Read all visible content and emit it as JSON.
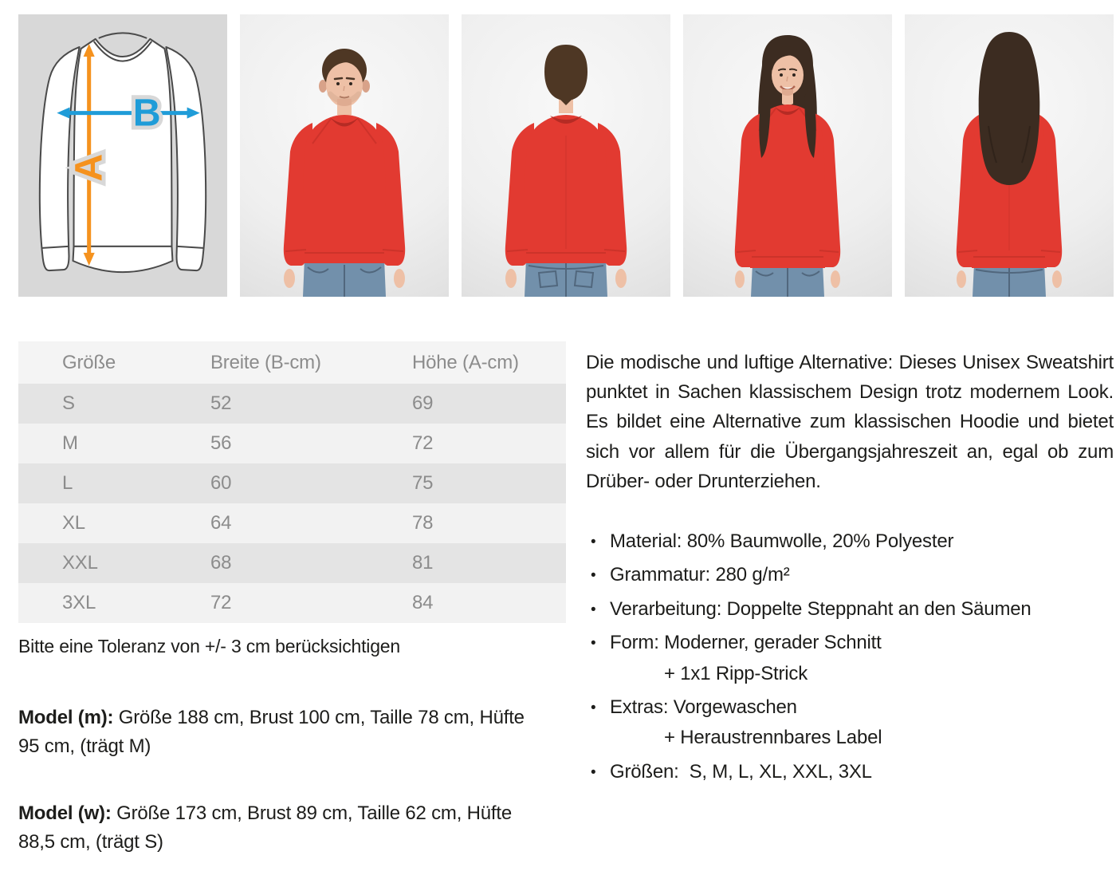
{
  "colors": {
    "red": "#e23a31",
    "red-dark": "#b52b24",
    "skin": "#eec0a6",
    "skin-sh": "#d8a289",
    "hair-m": "#4e3724",
    "hair-w": "#3c2c21",
    "jeans": "#7290ab",
    "jeans-dark": "#51677d",
    "line": "#4a4a4a",
    "arrow-orange": "#f5921e",
    "arrow-blue": "#1f9cd8",
    "diagram-bg": "#d8d8d8",
    "text": "#1d1d1b",
    "muted": "#8c8c8c",
    "row-dark": "#e4e4e4",
    "row-light": "#f2f2f2",
    "header-bg": "#f4f4f4"
  },
  "gallery": {
    "diagram": {
      "label_a": "A",
      "label_b": "B"
    },
    "photos": [
      "man-front",
      "man-back",
      "woman-front",
      "woman-back"
    ]
  },
  "size_table": {
    "headers": [
      "Größe",
      "Breite (B-cm)",
      "Höhe (A-cm)"
    ],
    "rows": [
      [
        "S",
        "52",
        "69"
      ],
      [
        "M",
        "56",
        "72"
      ],
      [
        "L",
        "60",
        "75"
      ],
      [
        "XL",
        "64",
        "78"
      ],
      [
        "XXL",
        "68",
        "81"
      ],
      [
        "3XL",
        "72",
        "84"
      ]
    ],
    "note": "Bitte eine Toleranz von +/- 3 cm berücksichtigen"
  },
  "models": [
    {
      "label": "Model (m):",
      "text": "Größe 188 cm, Brust 100 cm, Taille 78 cm, Hüfte 95 cm, (trägt M)"
    },
    {
      "label": "Model (w):",
      "text": "Größe 173 cm, Brust 89 cm, Taille 62 cm, Hüfte 88,5 cm, (trägt S)"
    }
  ],
  "description": {
    "paragraph": "Die modische und luftige Alternative: Dieses Unisex Sweatshirt punktet in Sachen klassischem Design trotz modernem Look. Es bildet eine Alternative zum klassischen Hoodie und bietet sich vor allem für die Übergangsjahreszeit an, egal ob zum Drüber- oder Drunterziehen.",
    "bullets": [
      {
        "text": "Material: 80% Baumwolle, 20% Polyester"
      },
      {
        "text": "Grammatur: 280 g/m²"
      },
      {
        "text": "Verarbeitung: Doppelte Steppnaht an den Säumen"
      },
      {
        "text": "Form: Moderner, gerader Schnitt",
        "sub": "+ 1x1 Ripp-Strick"
      },
      {
        "text": "Extras: Vorgewaschen",
        "sub": "+ Heraustrennbares Label"
      },
      {
        "text": "Größen:  S, M, L, XL, XXL, 3XL"
      }
    ]
  }
}
